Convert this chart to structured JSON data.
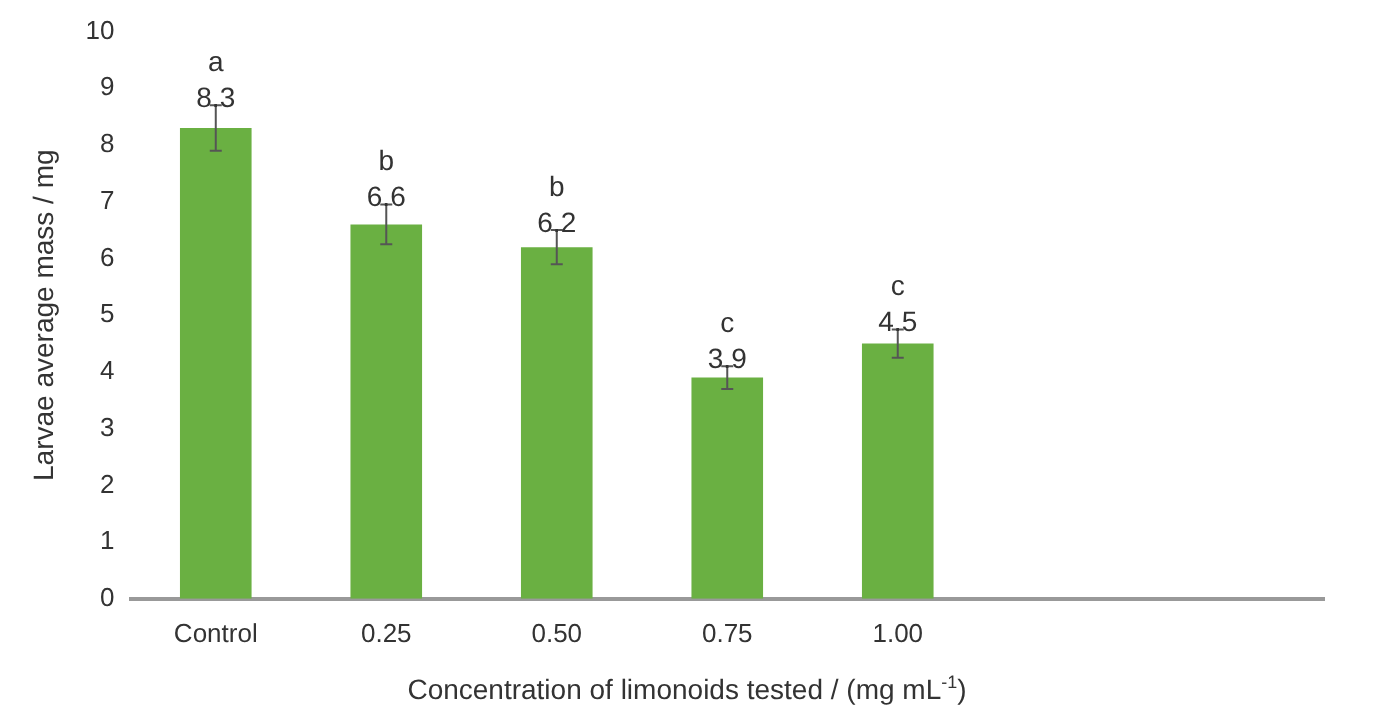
{
  "chart_data": {
    "type": "bar",
    "xlabel": "Concentration of limonoids tested / (mg mL$^{-1}$)",
    "ylabel": "Larvae average mass / mg",
    "categories": [
      "Control",
      "0.25",
      "0.50",
      "0.75",
      "1.00",
      null,
      null
    ],
    "values": [
      8.3,
      6.6,
      6.2,
      3.9,
      4.5,
      null,
      null
    ],
    "errors": [
      0.4,
      0.35,
      0.3,
      0.2,
      0.25,
      null,
      null
    ],
    "color": "#6ab042",
    "ylim": [
      0,
      10
    ],
    "yticks": [
      0,
      1,
      2,
      3,
      4,
      5,
      6,
      7,
      8,
      9,
      10
    ],
    "grid": false,
    "legend": false,
    "data_labels": true,
    "annotations": [
      {
        "text": "a",
        "x": "Control",
        "y": 8.7
      },
      {
        "text": "b",
        "x": "0.25",
        "y": 6.95
      },
      {
        "text": "b",
        "x": "0.50",
        "y": 6.5
      },
      {
        "text": "c",
        "x": "0.75",
        "y": 4.1
      },
      {
        "text": "c",
        "x": "1.00",
        "y": 4.75
      }
    ]
  }
}
